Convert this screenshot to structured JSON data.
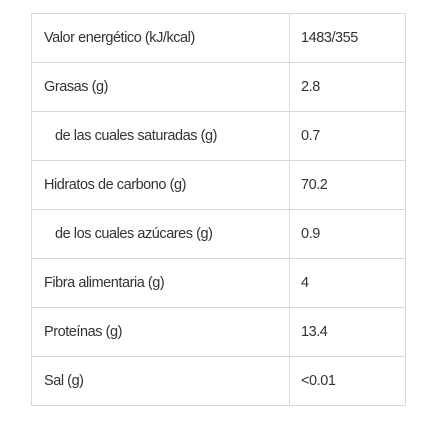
{
  "rows": [
    {
      "label": "Valor energético (kJ/kcal)",
      "value": "1483/355",
      "indent": false
    },
    {
      "label": "Grasas (g)",
      "value": "2.8",
      "indent": false
    },
    {
      "label": "de las cuales saturadas (g)",
      "value": "0.7",
      "indent": true
    },
    {
      "label": "Hidratos de carbono (g)",
      "value": "70.2",
      "indent": false
    },
    {
      "label": "de los cuales azúcares (g)",
      "value": "0.9",
      "indent": true
    },
    {
      "label": "Fibra alimentaria (g)",
      "value": "4",
      "indent": false
    },
    {
      "label": "Proteínas (g)",
      "value": "13.4",
      "indent": false
    },
    {
      "label": "Sal (g)",
      "value": "<0.01",
      "indent": false
    }
  ]
}
